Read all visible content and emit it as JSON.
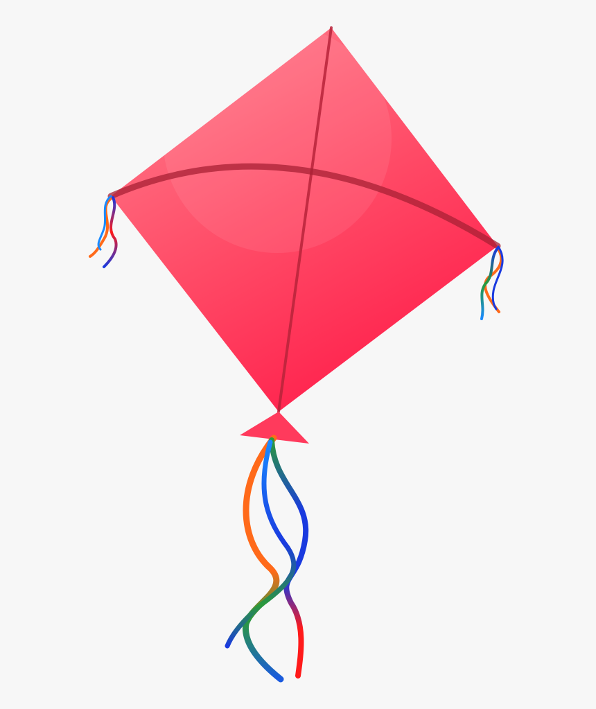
{
  "illustration": {
    "subject": "kite-with-ribbon-tails",
    "colors": {
      "background": "#f7f7f7",
      "kite_light": "#ff7a8a",
      "kite_mid": "#ff4a66",
      "kite_dark": "#ff1a48",
      "spar": "#b8243a",
      "tail_orange": "#ff6a1a",
      "tail_red": "#ff1a1a",
      "tail_blue": "#1a3adf",
      "tail_green": "#2a9a3a",
      "tail_light_blue": "#1a8aff"
    }
  }
}
